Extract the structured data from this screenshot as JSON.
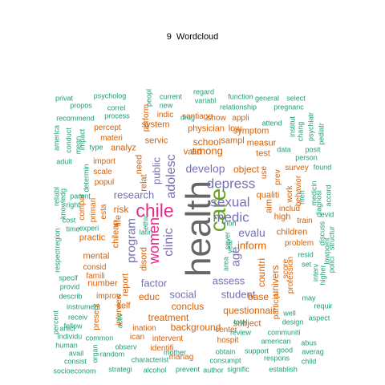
{
  "title": "9  Wordcloud",
  "palette": {
    "green": "#1B9E77",
    "orange": "#D95F02",
    "purple": "#7570B3",
    "magenta": "#E7298A",
    "lime": "#66A61E",
    "gray": "#666666"
  },
  "words": [
    {
      "text": "health",
      "color": "gray",
      "rotated": true
    },
    {
      "text": "care",
      "color": "lime",
      "rotated": true
    },
    {
      "text": "chile",
      "color": "magenta",
      "rotated": false
    },
    {
      "text": "women",
      "color": "magenta",
      "rotated": true
    },
    {
      "text": "adolesc",
      "color": "purple",
      "rotated": true
    },
    {
      "text": "depress",
      "color": "purple",
      "rotated": false
    },
    {
      "text": "sexual",
      "color": "purple",
      "rotated": false
    },
    {
      "text": "medic",
      "color": "purple",
      "rotated": false
    },
    {
      "text": "clinic",
      "color": "purple",
      "rotated": true
    },
    {
      "text": "program",
      "color": "purple",
      "rotated": true
    },
    {
      "text": "age",
      "color": "purple",
      "rotated": true
    },
    {
      "text": "develop",
      "color": "purple",
      "rotated": false
    },
    {
      "text": "research",
      "color": "purple",
      "rotated": false
    },
    {
      "text": "factor",
      "color": "purple",
      "rotated": false
    },
    {
      "text": "public",
      "color": "purple",
      "rotated": true
    },
    {
      "text": "evalu",
      "color": "purple",
      "rotated": false
    },
    {
      "text": "social",
      "color": "purple",
      "rotated": false
    },
    {
      "text": "assess",
      "color": "purple",
      "rotated": false
    },
    {
      "text": "student",
      "color": "purple",
      "rotated": false
    },
    {
      "text": "among",
      "color": "orange",
      "rotated": false
    },
    {
      "text": "school",
      "color": "orange",
      "rotated": false
    },
    {
      "text": "inform",
      "color": "orange",
      "rotated": false
    },
    {
      "text": "treatment",
      "color": "orange",
      "rotated": false
    },
    {
      "text": "educ",
      "color": "orange",
      "rotated": false
    },
    {
      "text": "conclus",
      "color": "orange",
      "rotated": false
    },
    {
      "text": "background",
      "color": "orange",
      "rotated": false
    },
    {
      "text": "questionnair",
      "color": "orange",
      "rotated": false
    },
    {
      "text": "countri",
      "color": "orange",
      "rotated": true
    },
    {
      "text": "univers",
      "color": "orange",
      "rotated": true
    },
    {
      "text": "risk",
      "color": "orange",
      "rotated": false
    },
    {
      "text": "object",
      "color": "orange",
      "rotated": false
    },
    {
      "text": "base",
      "color": "orange",
      "rotated": false
    },
    {
      "text": "children",
      "color": "orange",
      "rotated": false
    },
    {
      "text": "chilean",
      "color": "orange",
      "rotated": true
    },
    {
      "text": "life",
      "color": "orange",
      "rotated": true
    },
    {
      "text": "servic",
      "color": "orange",
      "rotated": false
    },
    {
      "text": "physician",
      "color": "orange",
      "rotated": false
    },
    {
      "text": "low",
      "color": "orange",
      "rotated": false
    },
    {
      "text": "aim",
      "color": "orange",
      "rotated": true
    },
    {
      "text": "high",
      "color": "orange",
      "rotated": false
    },
    {
      "text": "qualiti",
      "color": "orange",
      "rotated": false
    },
    {
      "text": "mental",
      "color": "orange",
      "rotated": false
    },
    {
      "text": "number",
      "color": "orange",
      "rotated": false
    },
    {
      "text": "report",
      "color": "orange",
      "rotated": true
    },
    {
      "text": "practic",
      "color": "orange",
      "rotated": false
    },
    {
      "text": "system",
      "color": "orange",
      "rotated": false
    },
    {
      "text": "analyz",
      "color": "orange",
      "rotated": false
    },
    {
      "text": "need",
      "color": "orange",
      "rotated": true
    },
    {
      "text": "relat",
      "color": "orange",
      "rotated": true
    },
    {
      "text": "disord",
      "color": "orange",
      "rotated": true
    },
    {
      "text": "self",
      "color": "orange",
      "rotated": false
    },
    {
      "text": "subject",
      "color": "orange",
      "rotated": false
    },
    {
      "text": "measur",
      "color": "orange",
      "rotated": false
    },
    {
      "text": "symptom",
      "color": "orange",
      "rotated": false
    },
    {
      "text": "sampl",
      "color": "orange",
      "rotated": false
    },
    {
      "text": "test",
      "color": "orange",
      "rotated": false
    },
    {
      "text": "valid",
      "color": "orange",
      "rotated": false
    },
    {
      "text": "problem",
      "color": "orange",
      "rotated": false
    },
    {
      "text": "includ",
      "color": "orange",
      "rotated": false
    },
    {
      "text": "profession",
      "color": "orange",
      "rotated": true
    },
    {
      "text": "score",
      "color": "orange",
      "rotated": true
    },
    {
      "text": "prev",
      "color": "orange",
      "rotated": true
    },
    {
      "text": "hospit",
      "color": "orange",
      "rotated": false
    },
    {
      "text": "consid",
      "color": "orange",
      "rotated": false
    },
    {
      "text": "famili",
      "color": "orange",
      "rotated": false
    },
    {
      "text": "improv",
      "color": "orange",
      "rotated": false
    },
    {
      "text": "identifi",
      "color": "orange",
      "rotated": false
    },
    {
      "text": "intervent",
      "color": "orange",
      "rotated": false
    },
    {
      "text": "center",
      "color": "orange",
      "rotated": false
    },
    {
      "text": "ination",
      "color": "orange",
      "rotated": false
    },
    {
      "text": "particip",
      "color": "orange",
      "rotated": true
    },
    {
      "text": "ican",
      "color": "orange",
      "rotated": false
    },
    {
      "text": "manag",
      "color": "orange",
      "rotated": false
    },
    {
      "text": "interview",
      "color": "orange",
      "rotated": true
    },
    {
      "text": "present",
      "color": "orange",
      "rotated": true
    },
    {
      "text": "popul",
      "color": "orange",
      "rotated": false
    },
    {
      "text": "scale",
      "color": "orange",
      "rotated": false
    },
    {
      "text": "import",
      "color": "orange",
      "rotated": false
    },
    {
      "text": "primari",
      "color": "orange",
      "rotated": true
    },
    {
      "text": "esta",
      "color": "orange",
      "rotated": true
    },
    {
      "text": "compar",
      "color": "orange",
      "rotated": true
    },
    {
      "text": "use",
      "color": "orange",
      "rotated": true
    },
    {
      "text": "work",
      "color": "orange",
      "rotated": true
    },
    {
      "text": "behavior",
      "color": "orange",
      "rotated": true
    },
    {
      "text": "train",
      "color": "orange",
      "rotated": false
    },
    {
      "text": "survey",
      "color": "orange",
      "rotated": false
    },
    {
      "text": "materi",
      "color": "orange",
      "rotated": false
    },
    {
      "text": "percept",
      "color": "orange",
      "rotated": false
    },
    {
      "text": "perform",
      "color": "orange",
      "rotated": true
    },
    {
      "text": "indic",
      "color": "orange",
      "rotated": false
    },
    {
      "text": "santiago",
      "color": "orange",
      "rotated": false
    },
    {
      "text": "show",
      "color": "orange",
      "rotated": false
    },
    {
      "text": "appli",
      "color": "orange",
      "rotated": false
    },
    {
      "text": "review",
      "color": "green",
      "rotated": false
    },
    {
      "text": "well",
      "color": "green",
      "rotated": false
    },
    {
      "text": "design",
      "color": "green",
      "rotated": false
    },
    {
      "text": "total",
      "color": "green",
      "rotated": false
    },
    {
      "text": "communiti",
      "color": "green",
      "rotated": false
    },
    {
      "text": "american",
      "color": "green",
      "rotated": false
    },
    {
      "text": "abus",
      "color": "green",
      "rotated": false
    },
    {
      "text": "support",
      "color": "green",
      "rotated": false
    },
    {
      "text": "good",
      "color": "green",
      "rotated": false
    },
    {
      "text": "respons",
      "color": "green",
      "rotated": false
    },
    {
      "text": "child",
      "color": "green",
      "rotated": false
    },
    {
      "text": "establish",
      "color": "green",
      "rotated": false
    },
    {
      "text": "signific",
      "color": "green",
      "rotated": false
    },
    {
      "text": "author",
      "color": "green",
      "rotated": false
    },
    {
      "text": "prevent",
      "color": "green",
      "rotated": false
    },
    {
      "text": "alcohol",
      "color": "green",
      "rotated": false
    },
    {
      "text": "strategi",
      "color": "green",
      "rotated": false
    },
    {
      "text": "socioeconom",
      "color": "green",
      "rotated": false
    },
    {
      "text": "consist",
      "color": "green",
      "rotated": false
    },
    {
      "text": "avail",
      "color": "green",
      "rotated": false
    },
    {
      "text": "human",
      "color": "green",
      "rotated": false
    },
    {
      "text": "individu",
      "color": "green",
      "rotated": false
    },
    {
      "text": "percent",
      "color": "green",
      "rotated": true
    },
    {
      "text": "articl",
      "color": "green",
      "rotated": false
    },
    {
      "text": "follow",
      "color": "green",
      "rotated": false
    },
    {
      "text": "receiv",
      "color": "green",
      "rotated": false
    },
    {
      "text": "instrument",
      "color": "green",
      "rotated": false
    },
    {
      "text": "describ",
      "color": "green",
      "rotated": false
    },
    {
      "text": "provid",
      "color": "green",
      "rotated": false
    },
    {
      "text": "specif",
      "color": "green",
      "rotated": false
    },
    {
      "text": "respect",
      "color": "green",
      "rotated": true
    },
    {
      "text": "region",
      "color": "green",
      "rotated": true
    },
    {
      "text": "time",
      "color": "green",
      "rotated": false
    },
    {
      "text": "cost",
      "color": "green",
      "rotated": false
    },
    {
      "text": "experi",
      "color": "green",
      "rotated": false
    },
    {
      "text": "parent",
      "color": "green",
      "rotated": false
    },
    {
      "text": "right",
      "color": "green",
      "rotated": false
    },
    {
      "text": "knowledg",
      "color": "green",
      "rotated": true
    },
    {
      "text": "reliabl",
      "color": "green",
      "rotated": true
    },
    {
      "text": "adult",
      "color": "green",
      "rotated": false
    },
    {
      "text": "america",
      "color": "green",
      "rotated": true
    },
    {
      "text": "conduct",
      "color": "green",
      "rotated": true
    },
    {
      "text": "mean",
      "color": "green",
      "rotated": true
    },
    {
      "text": "impact",
      "color": "green",
      "rotated": true
    },
    {
      "text": "determin",
      "color": "green",
      "rotated": true
    },
    {
      "text": "type",
      "color": "green",
      "rotated": false
    },
    {
      "text": "recommend",
      "color": "green",
      "rotated": false
    },
    {
      "text": "privat",
      "color": "green",
      "rotated": false
    },
    {
      "text": "propos",
      "color": "green",
      "rotated": false
    },
    {
      "text": "psycholog",
      "color": "green",
      "rotated": false
    },
    {
      "text": "correl",
      "color": "green",
      "rotated": false
    },
    {
      "text": "process",
      "color": "green",
      "rotated": false
    },
    {
      "text": "peopl",
      "color": "green",
      "rotated": true
    },
    {
      "text": "current",
      "color": "green",
      "rotated": false
    },
    {
      "text": "new",
      "color": "green",
      "rotated": false
    },
    {
      "text": "regard",
      "color": "green",
      "rotated": false
    },
    {
      "text": "variabl",
      "color": "green",
      "rotated": false
    },
    {
      "text": "drug",
      "color": "green",
      "rotated": false
    },
    {
      "text": "function",
      "color": "green",
      "rotated": false
    },
    {
      "text": "relationship",
      "color": "green",
      "rotated": false
    },
    {
      "text": "general",
      "color": "green",
      "rotated": false
    },
    {
      "text": "select",
      "color": "green",
      "rotated": false
    },
    {
      "text": "pregnanc",
      "color": "green",
      "rotated": false
    },
    {
      "text": "attend",
      "color": "green",
      "rotated": false
    },
    {
      "text": "institut",
      "color": "green",
      "rotated": true
    },
    {
      "text": "chang",
      "color": "green",
      "rotated": true
    },
    {
      "text": "psychiatr",
      "color": "green",
      "rotated": true
    },
    {
      "text": "pediatr",
      "color": "green",
      "rotated": true
    },
    {
      "text": "posit",
      "color": "green",
      "rotated": false
    },
    {
      "text": "data",
      "color": "green",
      "rotated": false
    },
    {
      "text": "person",
      "color": "green",
      "rotated": false
    },
    {
      "text": "found",
      "color": "green",
      "rotated": false
    },
    {
      "text": "men",
      "color": "green",
      "rotated": true
    },
    {
      "text": "medicin",
      "color": "green",
      "rotated": true
    },
    {
      "text": "diagnosi",
      "color": "green",
      "rotated": true
    },
    {
      "text": "accord",
      "color": "green",
      "rotated": true
    },
    {
      "text": "evid",
      "color": "green",
      "rotated": false
    },
    {
      "text": "discuss",
      "color": "green",
      "rotated": true
    },
    {
      "text": "structur",
      "color": "green",
      "rotated": true
    },
    {
      "text": "lowpoint",
      "color": "green",
      "rotated": true
    },
    {
      "text": "polici",
      "color": "green",
      "rotated": true
    },
    {
      "text": "resid",
      "color": "green",
      "rotated": false
    },
    {
      "text": "set",
      "color": "green",
      "rotated": false
    },
    {
      "text": "interv",
      "color": "green",
      "rotated": true
    },
    {
      "text": "higher",
      "color": "green",
      "rotated": true
    },
    {
      "text": "may",
      "color": "green",
      "rotated": false
    },
    {
      "text": "requir",
      "color": "green",
      "rotated": false
    },
    {
      "text": "aspect",
      "color": "green",
      "rotated": false
    },
    {
      "text": "averag",
      "color": "green",
      "rotated": false
    },
    {
      "text": "obtain",
      "color": "green",
      "rotated": false
    },
    {
      "text": "consumpt",
      "color": "green",
      "rotated": false
    },
    {
      "text": "mother",
      "color": "green",
      "rotated": false
    },
    {
      "text": "characterist",
      "color": "green",
      "rotated": false
    },
    {
      "text": "observ",
      "color": "green",
      "rotated": false
    },
    {
      "text": "random",
      "color": "green",
      "rotated": false
    },
    {
      "text": "organ",
      "color": "green",
      "rotated": true
    },
    {
      "text": "common",
      "color": "green",
      "rotated": false
    },
    {
      "text": "activ",
      "color": "green",
      "rotated": true
    },
    {
      "text": "area",
      "color": "green",
      "rotated": true
    },
    {
      "text": "non",
      "color": "green",
      "rotated": false
    },
    {
      "text": "ethic",
      "color": "green",
      "rotated": true
    },
    {
      "text": "latin",
      "color": "green",
      "rotated": false
    },
    {
      "text": "sever",
      "color": "green",
      "rotated": true
    },
    {
      "text": "year",
      "color": "green",
      "rotated": true
    }
  ]
}
